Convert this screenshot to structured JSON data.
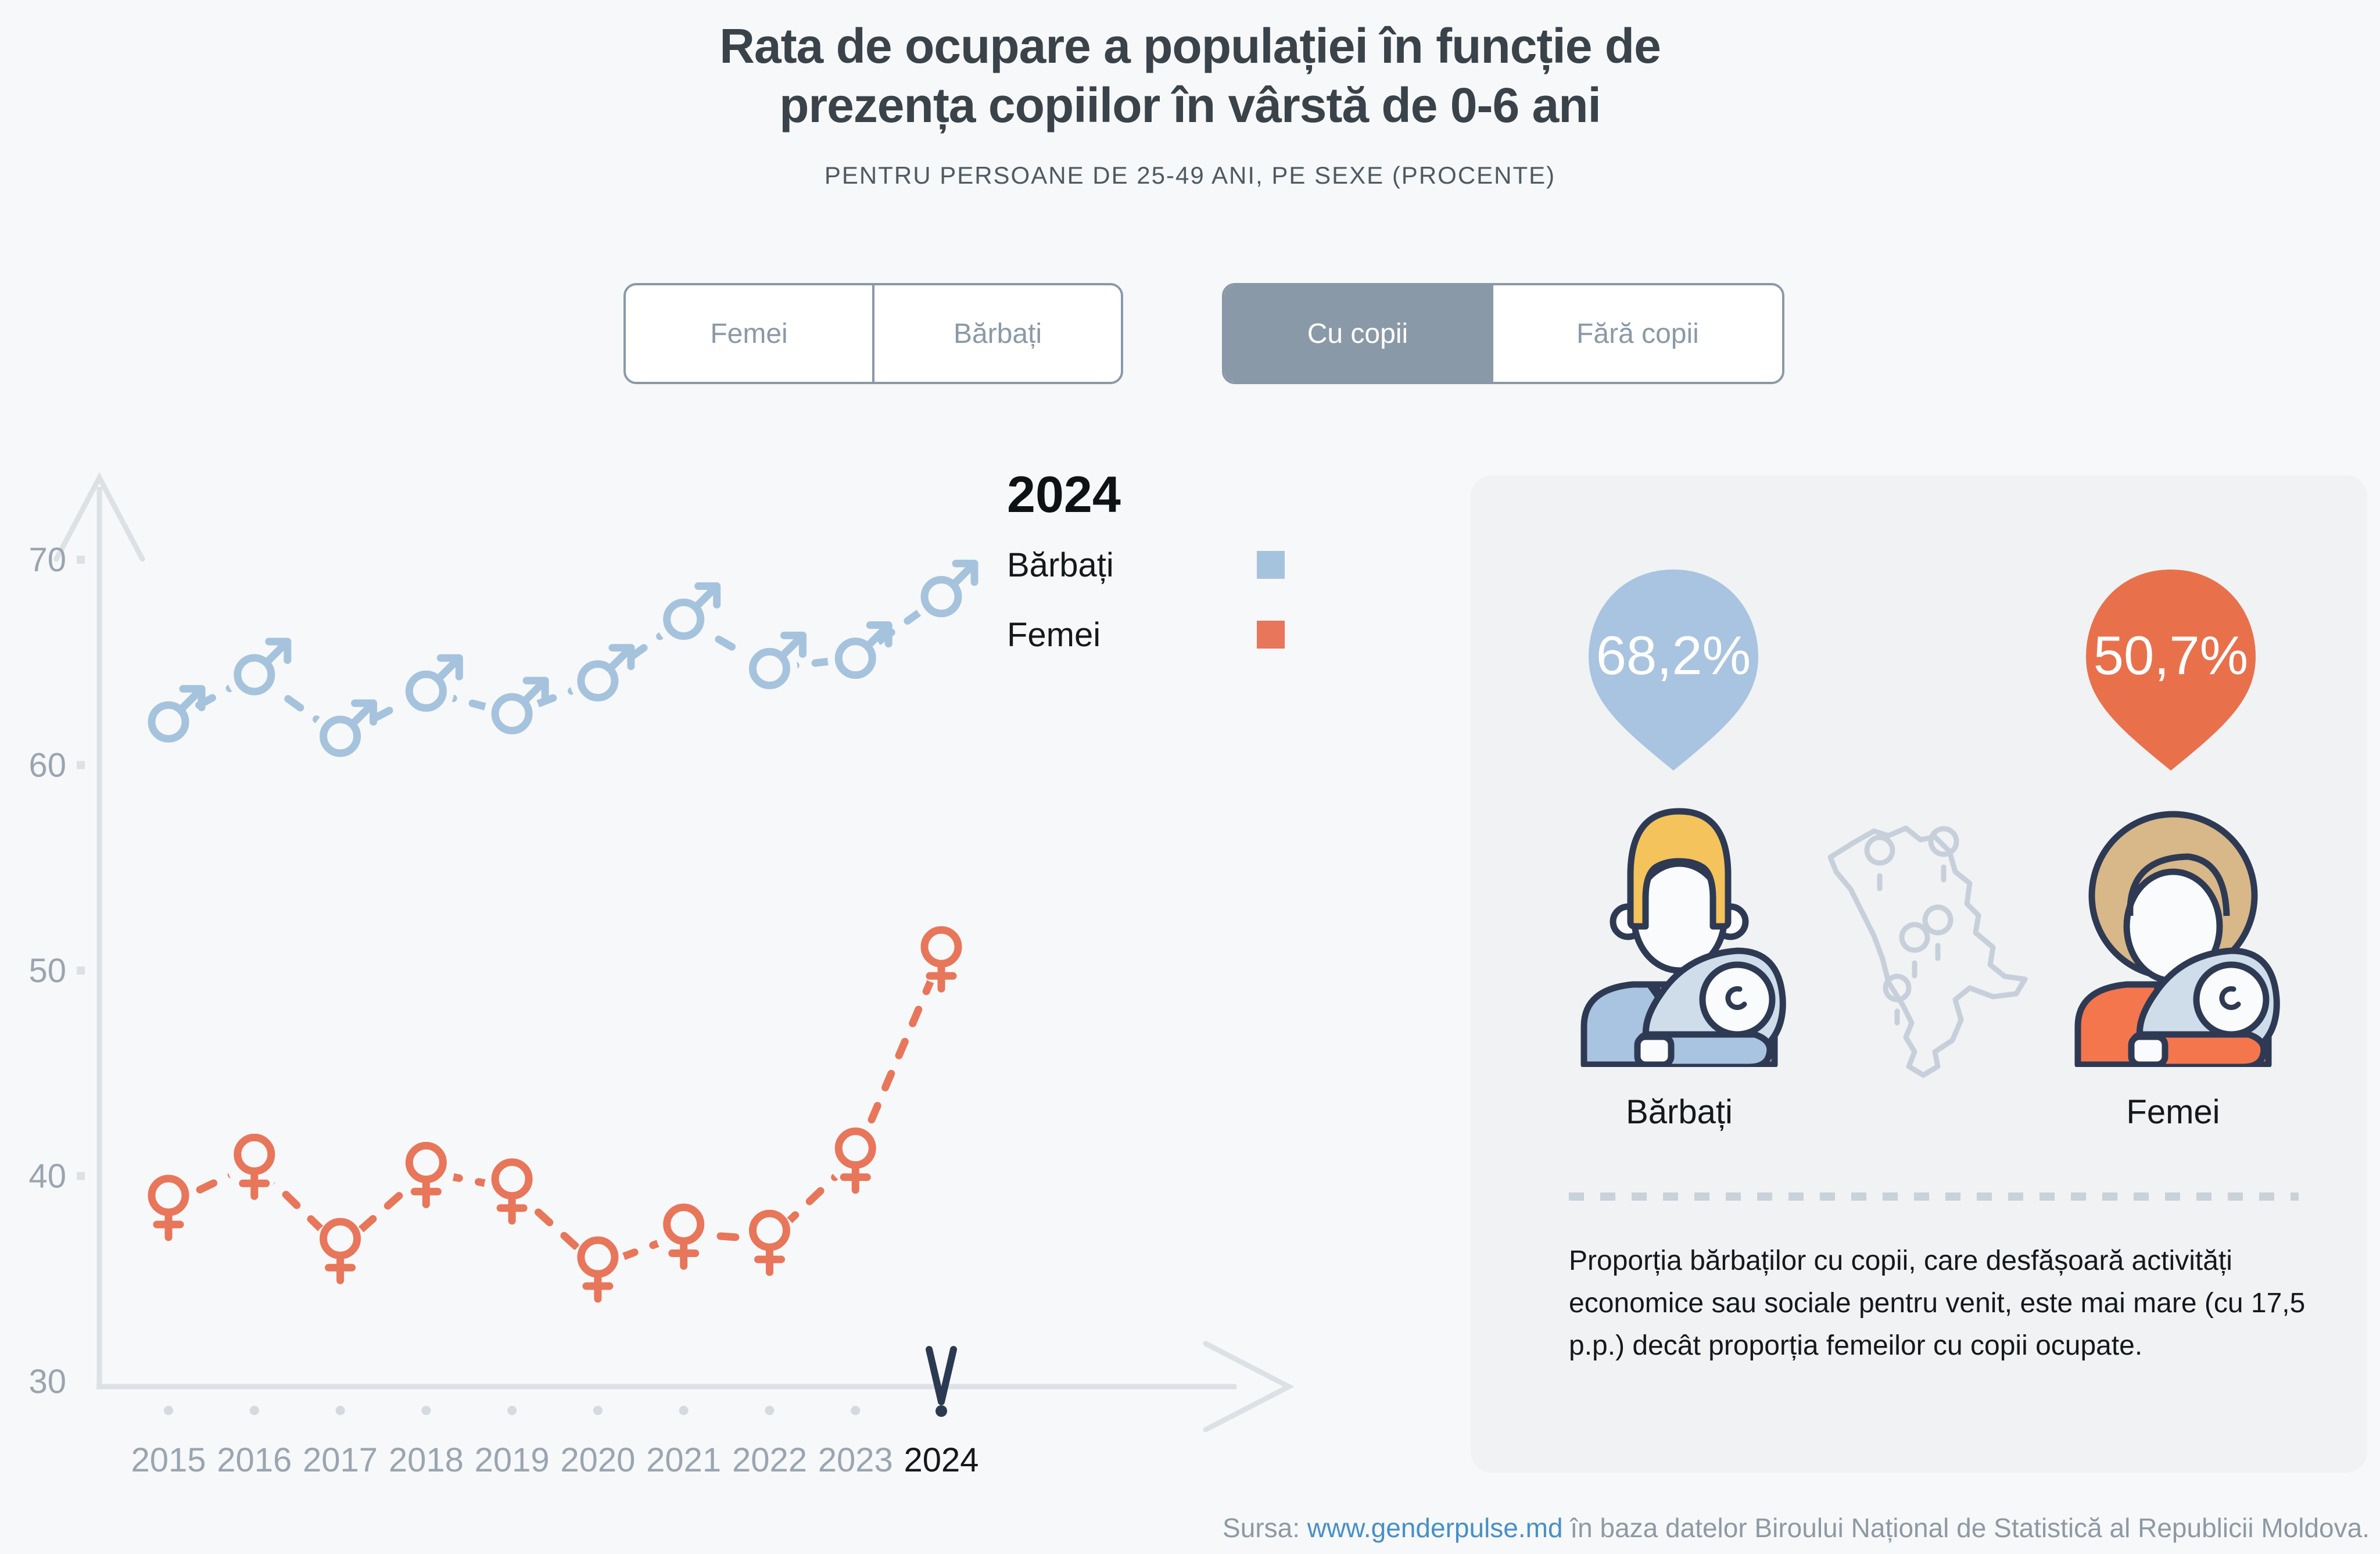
{
  "title": {
    "line1": "Rata de ocupare a populației în funcție de",
    "line2": "prezența copiilor în vârstă de 0-6 ani"
  },
  "subtitle": "PENTRU PERSOANE DE 25-49 ANI, PE SEXE (PROCENTE)",
  "toggles": {
    "sex": {
      "options": [
        "Femei",
        "Bărbați"
      ],
      "selected": ""
    },
    "children": {
      "options": [
        "Cu copii",
        "Fără copii"
      ],
      "selected": "Cu copii"
    }
  },
  "legend": {
    "year": "2024",
    "items": [
      {
        "label": "Bărbați",
        "color": "#a6c3dd"
      },
      {
        "label": "Femei",
        "color": "#e8765a"
      }
    ]
  },
  "chart_data": {
    "type": "line",
    "title": "Rata de ocupare a populației în funcție de prezența copiilor în vârstă de 0-6 ani",
    "xlabel": "",
    "ylabel": "",
    "categories": [
      "2015",
      "2016",
      "2017",
      "2018",
      "2019",
      "2020",
      "2021",
      "2022",
      "2023",
      "2024"
    ],
    "series": [
      {
        "name": "Bărbați",
        "marker": "male-symbol-icon",
        "color": "#a6c3dd",
        "values": [
          62.1,
          64.4,
          61.4,
          63.6,
          62.5,
          64.1,
          67.1,
          64.7,
          65.2,
          68.2
        ]
      },
      {
        "name": "Femei",
        "marker": "female-symbol-icon",
        "color": "#e8765a",
        "values": [
          38.6,
          40.6,
          36.5,
          40.2,
          39.4,
          35.6,
          37.2,
          36.9,
          40.9,
          50.7
        ]
      }
    ],
    "ylim": [
      30,
      72
    ],
    "yticks": [
      30,
      40,
      50,
      60,
      70
    ],
    "grid": false,
    "line_style": "dashed",
    "legend_position": "top-right",
    "highlighted_year": "2024"
  },
  "panel": {
    "pins": [
      {
        "value": "68,2%",
        "color": "#a9c4e0",
        "label": "Bărbați"
      },
      {
        "value": "50,7%",
        "color": "#e8714b",
        "label": "Femei"
      }
    ],
    "note": "Proporția bărbaților cu copii, care desfășoară activități economice sau sociale pentru venit, este mai mare (cu 17,5 p.p.) decât proporția femeilor cu copii ocupate."
  },
  "footer": {
    "prefix": "Sursa: ",
    "link": "www.genderpulse.md",
    "suffix": " în baza datelor Biroului Național de Statistică al Republicii Moldova."
  },
  "colors": {
    "background": "#f7f8f9",
    "panel_background": "#f0f2f4",
    "axis": "#dce1e6",
    "axis_label": "#9aa5b1",
    "navy_outline": "#2e3a54",
    "indicator": "#2b3a52",
    "toggle_active": "#8a99a7"
  }
}
